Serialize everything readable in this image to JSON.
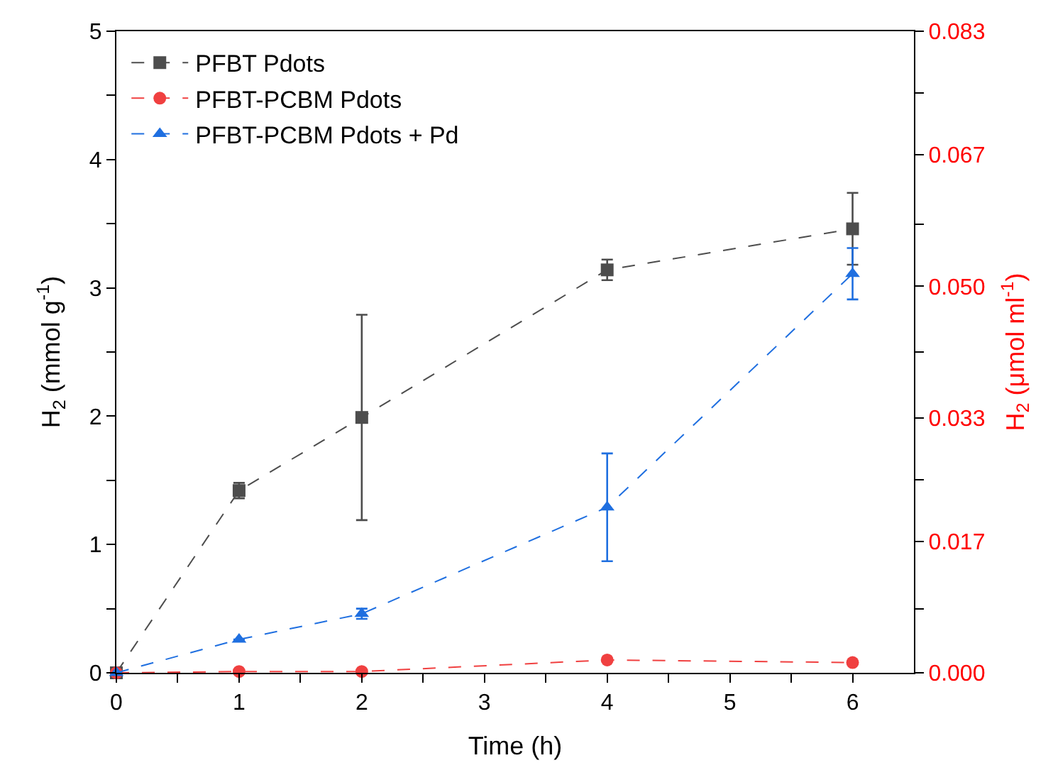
{
  "chart_data": {
    "type": "line",
    "xlabel": "Time (h)",
    "ylabel": "H$_{2}$ (mmol g$^{-1}$)",
    "y2label": "H$_{2}$ (μmol ml$^{-1}$)",
    "x": [
      0,
      1,
      2,
      4,
      6
    ],
    "xlim": [
      0,
      6.5
    ],
    "xticks": [
      0,
      {
        "value": 0.5,
        "label": null
      },
      1,
      {
        "value": 1.5,
        "label": null
      },
      2,
      {
        "value": 2.5,
        "label": null
      },
      3,
      {
        "value": 3.5,
        "label": null
      },
      4,
      {
        "value": 4.5,
        "label": null
      },
      5,
      {
        "value": 5.5,
        "label": null
      },
      6
    ],
    "ylim": [
      0,
      5
    ],
    "yticks": [
      0,
      {
        "value": 0.5,
        "label": null
      },
      1,
      {
        "value": 1.5,
        "label": null
      },
      2,
      {
        "value": 2.5,
        "label": null
      },
      3,
      {
        "value": 3.5,
        "label": null
      },
      4,
      {
        "value": 4.5,
        "label": null
      },
      5
    ],
    "y2lim": [
      0,
      0.083
    ],
    "y2ticks": [
      {
        "value": 0,
        "label": "0.000"
      },
      {
        "value": 0.0083,
        "label": null
      },
      0.017,
      {
        "value": 0.025,
        "label": null
      },
      0.033,
      {
        "value": 0.0415,
        "label": null
      },
      {
        "value": 0.05,
        "label": "0.050"
      },
      {
        "value": 0.058,
        "label": null
      },
      0.067,
      {
        "value": 0.075,
        "label": null
      },
      0.083
    ],
    "legend": "top left",
    "line_style": "dashed",
    "series": [
      {
        "name": "PFBT Pdots",
        "color": "#4d4d4d",
        "marker": "square",
        "values": [
          0,
          1.42,
          1.99,
          3.14,
          3.46
        ],
        "errors": [
          null,
          0.06,
          0.8,
          0.08,
          0.28
        ]
      },
      {
        "name": "PFBT-PCBM Pdots",
        "color": "#f04040",
        "marker": "circle",
        "values": [
          0,
          0.01,
          0.01,
          0.1,
          0.08
        ]
      },
      {
        "name": "PFBT-PCBM Pdots + Pd",
        "color": "#1f6fe0",
        "marker": "triangle",
        "values": [
          0,
          0.26,
          0.46,
          1.29,
          3.11
        ],
        "errors": [
          null,
          null,
          0.04,
          0.42,
          0.2
        ]
      }
    ]
  }
}
